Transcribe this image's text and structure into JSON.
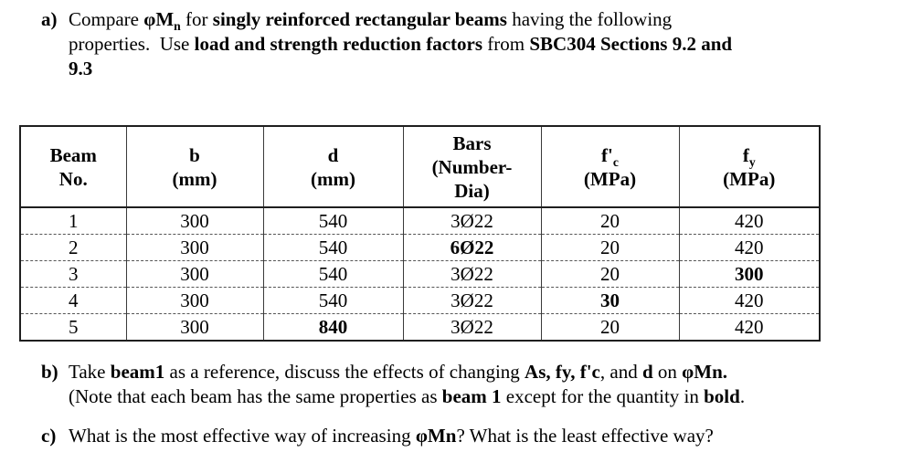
{
  "page": {
    "background": "#ffffff",
    "text_color": "#000000",
    "border_color": "#1f1f1f",
    "dashed_separator_color": "#555555"
  },
  "questions": [
    {
      "label": "a)",
      "segments": [
        {
          "t": "Compare ",
          "b": false
        },
        {
          "t": "φM",
          "b": true
        },
        {
          "t": "n",
          "b": true,
          "sub": true
        },
        {
          "t": " for ",
          "b": false
        },
        {
          "t": "singly reinforced rectangular beams",
          "b": true
        },
        {
          "t": " having the following",
          "b": false
        },
        {
          "br": true
        },
        {
          "t": "properties.  Use ",
          "b": false
        },
        {
          "t": "load and strength reduction factors",
          "b": true
        },
        {
          "t": " from ",
          "b": false
        },
        {
          "t": "SBC304 Sections 9.2 and",
          "b": true
        },
        {
          "br": true
        },
        {
          "t": "9.3",
          "b": true
        }
      ]
    },
    {
      "label": "b)",
      "segments": [
        {
          "t": "Take ",
          "b": false
        },
        {
          "t": "beam1",
          "b": true
        },
        {
          "t": " as a reference, discuss the effects of changing ",
          "b": false
        },
        {
          "t": "As, fy, f'c",
          "b": true
        },
        {
          "t": ", and ",
          "b": false
        },
        {
          "t": "d",
          "b": true
        },
        {
          "t": " on ",
          "b": false
        },
        {
          "t": "φMn",
          "b": true
        },
        {
          "t": ".",
          "b": true
        },
        {
          "br": true
        },
        {
          "t": "(Note that each beam has the same properties as ",
          "b": false
        },
        {
          "t": "beam 1",
          "b": true
        },
        {
          "t": " except for the quantity in ",
          "b": false
        },
        {
          "t": "bold",
          "b": true
        },
        {
          "t": ".",
          "b": false
        }
      ]
    },
    {
      "label": "c)",
      "segments": [
        {
          "t": "What is the most effective way of increasing ",
          "b": false
        },
        {
          "t": "φMn",
          "b": true
        },
        {
          "t": "? What is the least effective way?",
          "b": false
        }
      ]
    }
  ],
  "table": {
    "headers": [
      {
        "name": "beam-no",
        "lines": [
          [
            {
              "t": "Beam",
              "b": true
            }
          ],
          [
            {
              "t": "No.",
              "b": true
            }
          ]
        ]
      },
      {
        "name": "b-mm",
        "lines": [
          [
            {
              "t": "b",
              "b": true
            }
          ],
          [
            {
              "t": "(mm)",
              "b": true
            }
          ]
        ]
      },
      {
        "name": "d-mm",
        "lines": [
          [
            {
              "t": "d",
              "b": true
            }
          ],
          [
            {
              "t": "(mm)",
              "b": true
            }
          ]
        ]
      },
      {
        "name": "bars",
        "lines": [
          [
            {
              "t": "Bars",
              "b": true
            }
          ],
          [
            {
              "t": "(Number-",
              "b": true
            }
          ],
          [
            {
              "t": "Dia)",
              "b": true
            }
          ]
        ]
      },
      {
        "name": "fc-mpa",
        "lines": [
          [
            {
              "t": "f'",
              "b": true
            },
            {
              "t": "c",
              "b": true,
              "sub": true
            }
          ],
          [
            {
              "t": "(MPa)",
              "b": true
            }
          ]
        ]
      },
      {
        "name": "fy-mpa",
        "lines": [
          [
            {
              "t": "f",
              "b": true
            },
            {
              "t": "y",
              "b": true,
              "sub": true
            }
          ],
          [
            {
              "t": "(MPa)",
              "b": true
            }
          ]
        ]
      }
    ],
    "rows": [
      {
        "cells": [
          {
            "t": "1",
            "b": false
          },
          {
            "t": "300",
            "b": false
          },
          {
            "t": "540",
            "b": false
          },
          {
            "t": "3Ø22",
            "b": false
          },
          {
            "t": "20",
            "b": false
          },
          {
            "t": "420",
            "b": false
          }
        ]
      },
      {
        "cells": [
          {
            "t": "2",
            "b": false
          },
          {
            "t": "300",
            "b": false
          },
          {
            "t": "540",
            "b": false
          },
          {
            "t": "6Ø22",
            "b": true
          },
          {
            "t": "20",
            "b": false
          },
          {
            "t": "420",
            "b": false
          }
        ]
      },
      {
        "cells": [
          {
            "t": "3",
            "b": false
          },
          {
            "t": "300",
            "b": false
          },
          {
            "t": "540",
            "b": false
          },
          {
            "t": "3Ø22",
            "b": false
          },
          {
            "t": "20",
            "b": false
          },
          {
            "t": "300",
            "b": true
          }
        ]
      },
      {
        "cells": [
          {
            "t": "4",
            "b": false
          },
          {
            "t": "300",
            "b": false
          },
          {
            "t": "540",
            "b": false
          },
          {
            "t": "3Ø22",
            "b": false
          },
          {
            "t": "30",
            "b": true
          },
          {
            "t": "420",
            "b": false
          }
        ]
      },
      {
        "cells": [
          {
            "t": "5",
            "b": false
          },
          {
            "t": "300",
            "b": false
          },
          {
            "t": "840",
            "b": true
          },
          {
            "t": "3Ø22",
            "b": false
          },
          {
            "t": "20",
            "b": false
          },
          {
            "t": "420",
            "b": false
          }
        ]
      }
    ]
  }
}
